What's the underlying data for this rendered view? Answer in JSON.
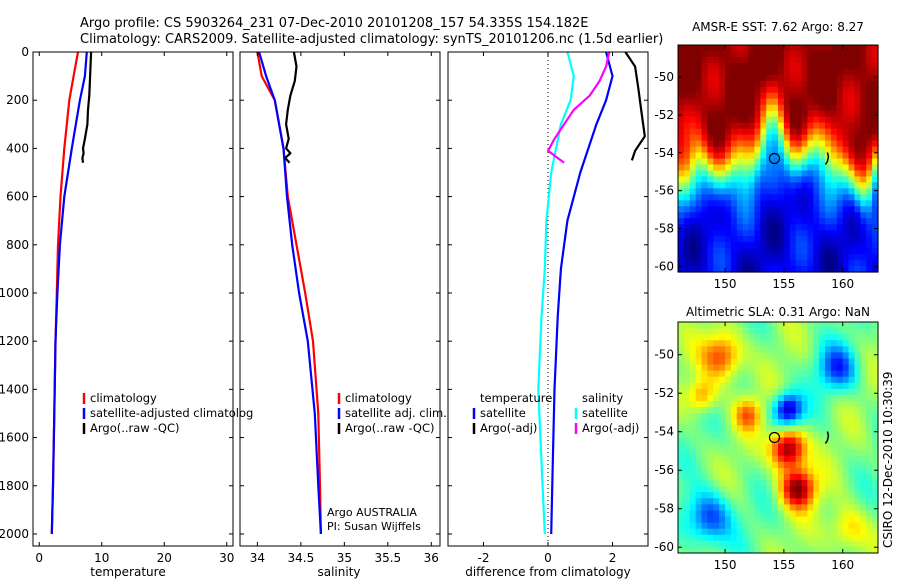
{
  "header": {
    "line1": "Argo profile: CS 5903264_231 07-Dec-2010 20101208_157 54.335S 154.182E",
    "line2": "Climatology: CARS2009. Satellite-adjusted climatology: synTS_20101206.nc (1.5d earlier)"
  },
  "side_label": "CSIRO 12-Dec-2010 10:30:39",
  "chart_data": [
    {
      "type": "line",
      "xlabel": "temperature",
      "xlim": [
        -1,
        31
      ],
      "ylim": [
        2050,
        0
      ],
      "xticks": [
        0,
        10,
        20,
        30
      ],
      "yticks": [
        0,
        200,
        400,
        600,
        800,
        1000,
        1200,
        1400,
        1600,
        1800,
        2000
      ],
      "legend": [
        "climatology",
        "satellite-adjusted climatolog",
        "Argo(..raw -QC)"
      ],
      "series": [
        {
          "name": "climatology",
          "color": "#ff0000",
          "x": [
            6.2,
            5.5,
            4.8,
            4.0,
            3.4,
            3.0,
            2.8,
            2.6,
            2.4,
            2.2,
            2.0
          ],
          "y": [
            0,
            100,
            200,
            400,
            600,
            800,
            1000,
            1200,
            1500,
            1800,
            2000
          ]
        },
        {
          "name": "satellite-adjusted climatolog",
          "color": "#0000ff",
          "x": [
            7.6,
            7.3,
            6.5,
            5.2,
            4.0,
            3.3,
            2.9,
            2.6,
            2.4,
            2.2,
            2.0
          ],
          "y": [
            0,
            100,
            200,
            400,
            600,
            800,
            1000,
            1200,
            1500,
            1800,
            2000
          ]
        },
        {
          "name": "Argo(..raw -QC)",
          "color": "#000000",
          "x": [
            8.3,
            8.2,
            8.1,
            8.0,
            7.8,
            7.7,
            7.3,
            7.0,
            7.1,
            6.9,
            7.0
          ],
          "y": [
            0,
            60,
            120,
            180,
            240,
            300,
            360,
            400,
            420,
            440,
            460
          ]
        }
      ]
    },
    {
      "type": "line",
      "xlabel": "salinity",
      "xlim": [
        33.8,
        36.1
      ],
      "ylim": [
        2050,
        0
      ],
      "xticks": [
        34,
        34.5,
        35,
        35.5,
        36
      ],
      "legend": [
        "climatology",
        "satellite adj. clim.",
        "Argo(..raw -QC)"
      ],
      "annotations": [
        "Argo AUSTRALIA",
        "PI: Susan Wijffels"
      ],
      "series": [
        {
          "name": "climatology",
          "color": "#ff0000",
          "x": [
            34.0,
            34.05,
            34.2,
            34.3,
            34.35,
            34.45,
            34.55,
            34.64,
            34.7,
            34.72,
            34.73
          ],
          "y": [
            0,
            100,
            200,
            400,
            600,
            800,
            1000,
            1200,
            1500,
            1800,
            2000
          ]
        },
        {
          "name": "satellite adj. clim.",
          "color": "#0000ff",
          "x": [
            34.02,
            34.1,
            34.2,
            34.3,
            34.34,
            34.4,
            34.48,
            34.58,
            34.66,
            34.7,
            34.73
          ],
          "y": [
            0,
            100,
            200,
            400,
            600,
            800,
            1000,
            1200,
            1500,
            1800,
            2000
          ]
        },
        {
          "name": "Argo(..raw -QC)",
          "color": "#000000",
          "x": [
            34.42,
            34.45,
            34.43,
            34.38,
            34.35,
            34.33,
            34.36,
            34.33,
            34.38,
            34.32,
            34.37
          ],
          "y": [
            0,
            60,
            120,
            180,
            240,
            300,
            360,
            400,
            420,
            440,
            460
          ]
        }
      ]
    },
    {
      "type": "line",
      "xlabel": "difference from climatology",
      "xlim": [
        -3.1,
        3.1
      ],
      "ylim": [
        2050,
        0
      ],
      "xticks": [
        -2,
        0,
        2
      ],
      "legend_headers": [
        "temperature",
        "salinity"
      ],
      "legend": [
        "satellite",
        "Argo(-adj)",
        "satellite",
        "Argo(-adj)"
      ],
      "series": [
        {
          "name": "temperature satellite",
          "color": "#0000ff",
          "x": [
            1.8,
            2.0,
            1.8,
            1.5,
            1.0,
            0.6,
            0.4,
            0.3,
            0.2,
            0.15,
            0.1
          ],
          "y": [
            0,
            100,
            200,
            300,
            500,
            700,
            900,
            1100,
            1400,
            1700,
            2000
          ]
        },
        {
          "name": "temperature Argo(-adj)",
          "color": "#000000",
          "x": [
            2.4,
            2.7,
            2.8,
            2.9,
            3.0,
            2.7,
            2.6
          ],
          "y": [
            0,
            60,
            150,
            250,
            350,
            410,
            450
          ]
        },
        {
          "name": "salinity satellite",
          "color": "#00ffff",
          "x": [
            0.6,
            0.8,
            0.7,
            0.4,
            0.1,
            -0.05,
            -0.1,
            -0.2,
            -0.3,
            -0.2,
            -0.1
          ],
          "y": [
            0,
            100,
            200,
            300,
            500,
            700,
            900,
            1100,
            1400,
            1700,
            2000
          ]
        },
        {
          "name": "salinity Argo(-adj)",
          "color": "#ff00ff",
          "x": [
            1.9,
            1.8,
            1.6,
            1.3,
            0.8,
            0.5,
            0.2,
            0.0,
            0.3,
            0.5
          ],
          "y": [
            0,
            60,
            120,
            180,
            240,
            300,
            360,
            410,
            440,
            460
          ]
        }
      ]
    },
    {
      "type": "heatmap",
      "title": "AMSR-E SST: 7.62 Argo: 8.27",
      "xlim": [
        146,
        163
      ],
      "ylim": [
        -60.3,
        -48.3
      ],
      "xticks": [
        150,
        155,
        160
      ],
      "yticks": [
        -50,
        -52,
        -54,
        -56,
        -58,
        -60
      ],
      "marker": [
        154.2,
        -54.3
      ]
    },
    {
      "type": "heatmap",
      "title": "Altimetric SLA: 0.31 Argo: NaN",
      "xlim": [
        146,
        163
      ],
      "ylim": [
        -60.3,
        -48.3
      ],
      "xticks": [
        150,
        155,
        160
      ],
      "yticks": [
        -50,
        -52,
        -54,
        -56,
        -58,
        -60
      ],
      "marker": [
        154.2,
        -54.3
      ]
    }
  ]
}
